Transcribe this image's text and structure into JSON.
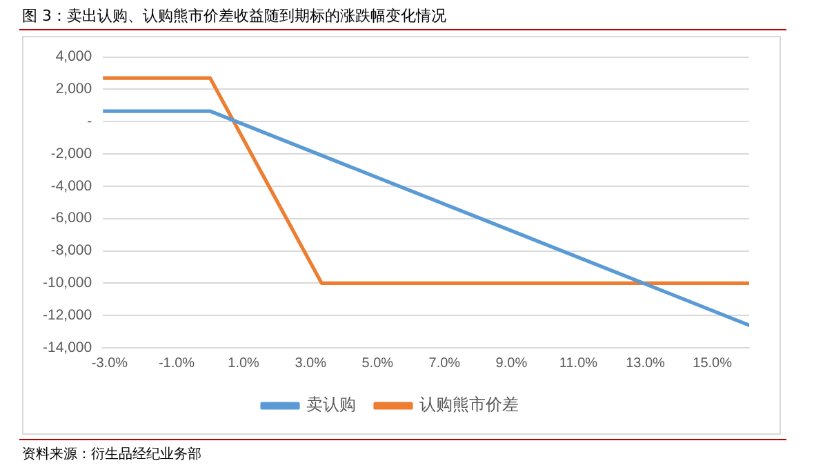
{
  "chart_data": {
    "type": "line",
    "title": "图 3：卖出认购、认购熊市价差收益随到期标的涨跌幅变化情况",
    "series": [
      {
        "name": "卖认购",
        "color": "#5b9bd5",
        "x": [
          -3.2,
          0,
          16.1
        ],
        "values": [
          650,
          650,
          -12600
        ]
      },
      {
        "name": "认购熊市价差",
        "color": "#ed7d31",
        "x": [
          -3.2,
          0,
          3.33,
          16.1
        ],
        "values": [
          2700,
          2700,
          -10000,
          -10000
        ]
      }
    ],
    "xlim": [
      -3.2,
      16.1
    ],
    "xticks": [
      {
        "value": -3,
        "label": "-3.0%"
      },
      {
        "value": -1,
        "label": "-1.0%"
      },
      {
        "value": 1,
        "label": "1.0%"
      },
      {
        "value": 3,
        "label": "3.0%"
      },
      {
        "value": 5,
        "label": "5.0%"
      },
      {
        "value": 7,
        "label": "7.0%"
      },
      {
        "value": 9,
        "label": "9.0%"
      },
      {
        "value": 11,
        "label": "11.0%"
      },
      {
        "value": 13,
        "label": "13.0%"
      },
      {
        "value": 15,
        "label": "15.0%"
      }
    ],
    "ylim": [
      -14000,
      4000
    ],
    "yticks": [
      {
        "value": 4000,
        "label": "4,000"
      },
      {
        "value": 2000,
        "label": "2,000"
      },
      {
        "value": 0,
        "label": "-"
      },
      {
        "value": -2000,
        "label": "-2,000"
      },
      {
        "value": -4000,
        "label": "-4,000"
      },
      {
        "value": -6000,
        "label": "-6,000"
      },
      {
        "value": -8000,
        "label": "-8,000"
      },
      {
        "value": -10000,
        "label": "-10,000"
      },
      {
        "value": -12000,
        "label": "-12,000"
      },
      {
        "value": -14000,
        "label": "-14,000"
      }
    ],
    "grid": "y",
    "legend": "bottom",
    "marker": "none",
    "line_style": "solid",
    "annotations": [
      "资料来源：衍生品经纪业务部"
    ]
  }
}
